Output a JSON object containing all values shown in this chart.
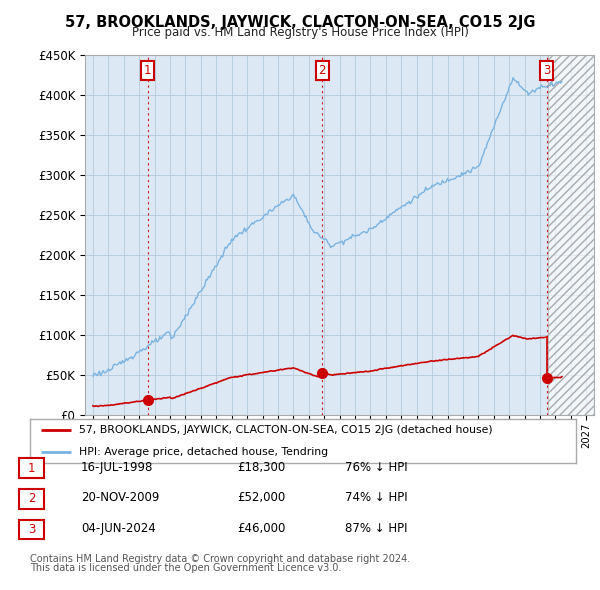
{
  "title": "57, BROOKLANDS, JAYWICK, CLACTON-ON-SEA, CO15 2JG",
  "subtitle": "Price paid vs. HM Land Registry's House Price Index (HPI)",
  "legend_line1": "57, BROOKLANDS, JAYWICK, CLACTON-ON-SEA, CO15 2JG (detached house)",
  "legend_line2": "HPI: Average price, detached house, Tendring",
  "transactions": [
    {
      "num": 1,
      "date_label": "16-JUL-1998",
      "price": 18300,
      "pct": "76% ↓ HPI",
      "year": 1998.55
    },
    {
      "num": 2,
      "date_label": "20-NOV-2009",
      "price": 52000,
      "pct": "74% ↓ HPI",
      "year": 2009.88
    },
    {
      "num": 3,
      "date_label": "04-JUN-2024",
      "price": 46000,
      "pct": "87% ↓ HPI",
      "year": 2024.42
    }
  ],
  "footnote1": "Contains HM Land Registry data © Crown copyright and database right 2024.",
  "footnote2": "This data is licensed under the Open Government Licence v3.0.",
  "ylim": [
    0,
    450000
  ],
  "xlim": [
    1994.5,
    2027.5
  ],
  "hpi_color": "#7ab3e0",
  "price_color": "#cc0000",
  "plot_bg_color": "#dce9f5",
  "grid_color": "#b8cfe0",
  "hatch_region_start": 2024.5,
  "box_label_positions": [
    {
      "num": "1",
      "year": 1998.55
    },
    {
      "num": "2",
      "year": 2009.88
    },
    {
      "num": "3",
      "year": 2024.42
    }
  ]
}
